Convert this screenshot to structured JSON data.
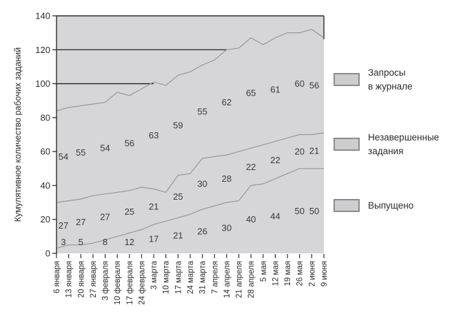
{
  "chart_data": {
    "type": "area",
    "subtype": "stacked-cumulative-flow",
    "title": "",
    "xlabel": "",
    "ylabel": "Кумулятивное количество рабочих заданий",
    "ylim": [
      0,
      140
    ],
    "yticks": [
      0,
      20,
      40,
      60,
      80,
      100,
      120,
      140
    ],
    "grid": false,
    "legend_position": "right",
    "x": [
      "6 января",
      "13 января",
      "20 января",
      "27 января",
      "3 февраля",
      "10 февраля",
      "17 февраля",
      "24 февраля",
      "3 марта",
      "10 марта",
      "17 марта",
      "24 марта",
      "31 марта",
      "7 апреля",
      "14 апреля",
      "21 апреля",
      "28 апреля",
      "5 мая",
      "12 мая",
      "19 мая",
      "26 мая",
      "2 июня",
      "9 июня"
    ],
    "label_x_indices": [
      0,
      2,
      4,
      6,
      8,
      10,
      12,
      14,
      16,
      18,
      20,
      22
    ],
    "series": [
      {
        "name": "Выпущено",
        "label_values": [
          3,
          5,
          8,
          12,
          17,
          21,
          26,
          30,
          40,
          44,
          50,
          50
        ]
      },
      {
        "name": "Незавершенные задания",
        "label_values": [
          27,
          27,
          27,
          25,
          21,
          25,
          30,
          28,
          22,
          22,
          20,
          21
        ]
      },
      {
        "name": "Запросы в журнале",
        "label_values": [
          54,
          55,
          54,
          56,
          63,
          59,
          55,
          62,
          65,
          61,
          60,
          56
        ]
      }
    ],
    "band_boundaries_weekly": {
      "released_top": [
        3,
        5,
        5,
        6,
        8,
        10,
        12,
        14,
        17,
        19,
        21,
        23,
        26,
        28,
        30,
        31,
        40,
        41,
        44,
        47,
        50,
        50,
        50
      ],
      "wip_top": [
        30,
        31,
        32,
        34,
        35,
        36,
        37,
        39,
        38,
        36,
        46,
        47,
        56,
        57,
        58,
        60,
        62,
        64,
        66,
        68,
        70,
        70,
        71
      ],
      "backlog_top": [
        84,
        86,
        87,
        88,
        89,
        95,
        93,
        97,
        101,
        99,
        105,
        107,
        111,
        114,
        120,
        121,
        127,
        123,
        127,
        130,
        130,
        132,
        127
      ]
    },
    "reference_lines": [
      {
        "y": 100,
        "to_x_index": 8
      },
      {
        "y": 120,
        "to_x_index": 14
      }
    ]
  },
  "legend": {
    "items": [
      {
        "label": "Запросы\nв журнале"
      },
      {
        "label": "Незавершенные\nзадания"
      },
      {
        "label": "Выпущено"
      }
    ]
  },
  "colors": {
    "plot_background": "#d6d6d8",
    "band_outline": "#97979b",
    "axis_line": "#2b2b2b",
    "reference_line": "#1f1f1f",
    "text": "#2b2b2b",
    "data_label_text": "#39393b",
    "legend_swatch_fill": "#cdcdcf",
    "legend_swatch_border": "#8b8b8d"
  }
}
